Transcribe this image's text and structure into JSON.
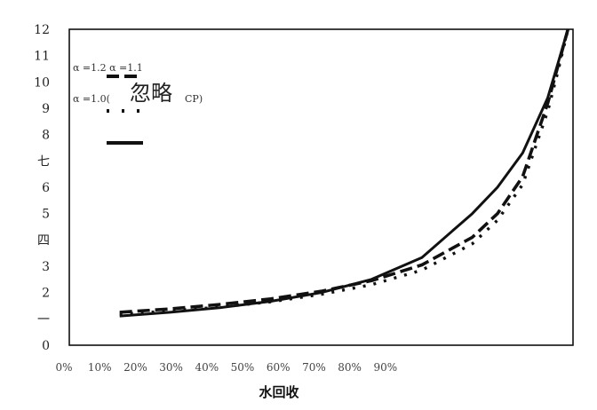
{
  "chart_data": {
    "type": "line",
    "y_tick_labels": [
      "0",
      "一",
      "2",
      "3",
      "四",
      "5",
      "6",
      "七",
      "8",
      "9",
      "10",
      "11",
      "12"
    ],
    "x_tick_labels": [
      "0%",
      "10%",
      "20%",
      "30%",
      "40%",
      "50%",
      "60%",
      "70%",
      "80%",
      "90%"
    ],
    "xlabel": "水回收",
    "ylim": [
      0,
      12
    ],
    "xlim": [
      0,
      1
    ],
    "grid": false,
    "legend_position": "top-left",
    "legend": {
      "row1": "α =1.2  α =1.1",
      "row2_prefix": "α =1.0(",
      "row2_big": "忽略",
      "row2_suffix": "CP)"
    },
    "series": [
      {
        "style": "dashed",
        "x": [
          0.1,
          0.2,
          0.3,
          0.4,
          0.5,
          0.6,
          0.7,
          0.8,
          0.85,
          0.9,
          0.95,
          0.97,
          0.99
        ],
        "y": [
          1.25,
          1.38,
          1.55,
          1.76,
          2.05,
          2.45,
          3.05,
          4.1,
          5.0,
          6.4,
          9.2,
          10.6,
          12.0
        ]
      },
      {
        "style": "dotted",
        "x": [
          0.1,
          0.2,
          0.3,
          0.4,
          0.5,
          0.6,
          0.7,
          0.8,
          0.85,
          0.9,
          0.95,
          0.97,
          0.99
        ],
        "y": [
          1.18,
          1.3,
          1.45,
          1.65,
          1.93,
          2.3,
          2.85,
          3.85,
          4.75,
          6.1,
          8.9,
          10.4,
          12.0
        ]
      },
      {
        "style": "solid",
        "x": [
          0.1,
          0.2,
          0.3,
          0.4,
          0.5,
          0.6,
          0.7,
          0.8,
          0.85,
          0.9,
          0.95,
          0.97,
          0.99
        ],
        "y": [
          1.11,
          1.25,
          1.43,
          1.67,
          2.0,
          2.5,
          3.33,
          5.0,
          6.0,
          7.3,
          9.4,
          10.7,
          12.0
        ]
      }
    ]
  }
}
